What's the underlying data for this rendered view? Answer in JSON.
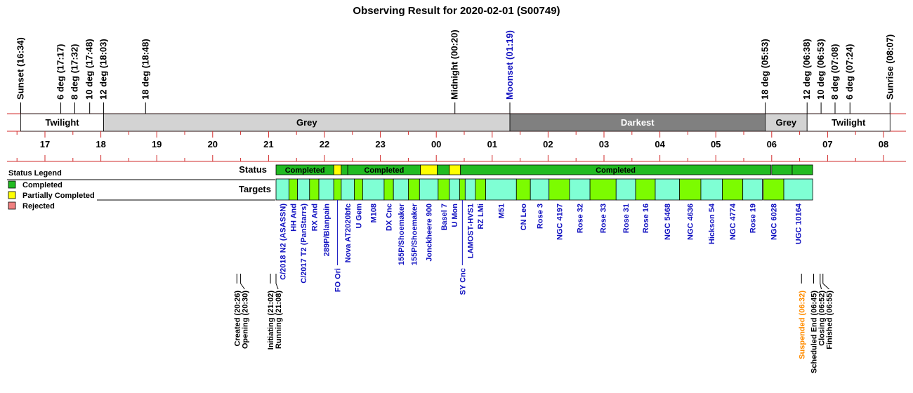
{
  "chart_data": {
    "type": "timeline",
    "title": "Observing Result for 2020-02-01 (S00749)",
    "time_axis": {
      "start": "16:30",
      "end": "08:30",
      "hour_labels": [
        "17",
        "18",
        "19",
        "20",
        "21",
        "22",
        "23",
        "00",
        "01",
        "02",
        "03",
        "04",
        "05",
        "06",
        "07",
        "08"
      ]
    },
    "sky_events": [
      {
        "label": "Sunset (16:34)",
        "time": "16:34",
        "color": "#000000"
      },
      {
        "label": "6 deg (17:17)",
        "time": "17:17",
        "color": "#000000"
      },
      {
        "label": "8 deg (17:32)",
        "time": "17:32",
        "color": "#000000"
      },
      {
        "label": "10 deg (17:48)",
        "time": "17:48",
        "color": "#000000"
      },
      {
        "label": "12 deg (18:03)",
        "time": "18:03",
        "color": "#000000"
      },
      {
        "label": "18 deg (18:48)",
        "time": "18:48",
        "color": "#000000"
      },
      {
        "label": "Midnight (00:20)",
        "time": "00:20",
        "color": "#000000"
      },
      {
        "label": "Moonset (01:19)",
        "time": "01:19",
        "color": "#1010c0"
      },
      {
        "label": "18 deg (05:53)",
        "time": "05:53",
        "color": "#000000"
      },
      {
        "label": "12 deg (06:38)",
        "time": "06:38",
        "color": "#000000"
      },
      {
        "label": "10 deg (06:53)",
        "time": "06:53",
        "color": "#000000"
      },
      {
        "label": "8 deg (07:08)",
        "time": "07:08",
        "color": "#000000"
      },
      {
        "label": "6 deg (07:24)",
        "time": "07:24",
        "color": "#000000"
      },
      {
        "label": "Sunrise (08:07)",
        "time": "08:07",
        "color": "#000000"
      }
    ],
    "sky_bands": [
      {
        "label": "Twilight",
        "start": "16:34",
        "end": "18:03",
        "color": "#ffffff",
        "text_color": "#000000"
      },
      {
        "label": "Grey",
        "start": "18:03",
        "end": "01:19",
        "color": "#d3d3d3",
        "text_color": "#000000"
      },
      {
        "label": "Darkest",
        "start": "01:19",
        "end": "05:53",
        "color": "#808080",
        "text_color": "#ffffff"
      },
      {
        "label": "Grey",
        "start": "05:53",
        "end": "06:38",
        "color": "#d3d3d3",
        "text_color": "#000000"
      },
      {
        "label": "Twilight",
        "start": "06:38",
        "end": "08:07",
        "color": "#ffffff",
        "text_color": "#000000"
      }
    ],
    "row_labels": {
      "status": "Status",
      "targets": "Targets"
    },
    "legend": {
      "title": "Status Legend",
      "position": "left",
      "items": [
        {
          "label": "Completed",
          "color": "#22bb22"
        },
        {
          "label": "Partially Completed",
          "color": "#ffff00"
        },
        {
          "label": "Rejected",
          "color": "#f08080"
        }
      ]
    },
    "status_segments": [
      {
        "label": "Completed",
        "status": "Completed",
        "start": "21:08",
        "end": "22:10"
      },
      {
        "label": "",
        "status": "Partially Completed",
        "start": "22:10",
        "end": "22:18"
      },
      {
        "label": "",
        "status": "Completed",
        "start": "22:18",
        "end": "22:25"
      },
      {
        "label": "Completed",
        "status": "Completed",
        "start": "22:25",
        "end": "23:43"
      },
      {
        "label": "",
        "status": "Partially Completed",
        "start": "23:43",
        "end": "00:01"
      },
      {
        "label": "",
        "status": "Completed",
        "start": "00:01",
        "end": "00:14"
      },
      {
        "label": "",
        "status": "Partially Completed",
        "start": "00:14",
        "end": "00:26"
      },
      {
        "label": "Completed",
        "status": "Completed",
        "start": "00:26",
        "end": "05:59"
      },
      {
        "label": "",
        "status": "Completed",
        "start": "06:00",
        "end": "06:22"
      },
      {
        "label": "",
        "status": "Completed",
        "start": "06:22",
        "end": "06:44"
      }
    ],
    "targets": [
      {
        "name": "C/2018 N2 (ASASSN)",
        "start": "21:08",
        "end": "21:22",
        "color": "#7fffd4"
      },
      {
        "name": "HH And",
        "start": "21:22",
        "end": "21:31",
        "color": "#7cfc00"
      },
      {
        "name": "C/2017 T2 (PanStarrs)",
        "start": "21:31",
        "end": "21:44",
        "color": "#7fffd4"
      },
      {
        "name": "RX And",
        "start": "21:44",
        "end": "21:54",
        "color": "#7cfc00"
      },
      {
        "name": "289P/Blanpain",
        "start": "21:54",
        "end": "22:10",
        "color": "#7fffd4"
      },
      {
        "name": "FO Ori",
        "start": "22:10",
        "end": "22:18",
        "color": "#7cfc00"
      },
      {
        "name": "Nova AT2020bfc",
        "start": "22:18",
        "end": "22:32",
        "color": "#7fffd4"
      },
      {
        "name": "U Gem",
        "start": "22:32",
        "end": "22:41",
        "color": "#7cfc00"
      },
      {
        "name": "M108",
        "start": "22:41",
        "end": "23:04",
        "color": "#7fffd4"
      },
      {
        "name": "DX Cnc",
        "start": "23:04",
        "end": "23:14",
        "color": "#7cfc00"
      },
      {
        "name": "155P/Shoemaker",
        "start": "23:14",
        "end": "23:30",
        "color": "#7fffd4"
      },
      {
        "name": "155P/Shoemaker",
        "start": "23:30",
        "end": "23:42",
        "color": "#7cfc00"
      },
      {
        "name": "Jonckheere 900",
        "start": "23:42",
        "end": "00:02",
        "color": "#7fffd4"
      },
      {
        "name": "Basel 7",
        "start": "00:02",
        "end": "00:14",
        "color": "#7cfc00"
      },
      {
        "name": "U Mon",
        "start": "00:14",
        "end": "00:25",
        "color": "#7fffd4"
      },
      {
        "name": "SY Cnc",
        "start": "00:25",
        "end": "00:31",
        "color": "#7cfc00"
      },
      {
        "name": "LAMOST-HVS1",
        "start": "00:31",
        "end": "00:42",
        "color": "#7fffd4"
      },
      {
        "name": "RZ LMi",
        "start": "00:42",
        "end": "00:53",
        "color": "#7cfc00"
      },
      {
        "name": "M51",
        "start": "00:53",
        "end": "01:26",
        "color": "#7fffd4"
      },
      {
        "name": "CN Leo",
        "start": "01:26",
        "end": "01:41",
        "color": "#7cfc00"
      },
      {
        "name": "Rose 3",
        "start": "01:41",
        "end": "02:01",
        "color": "#7fffd4"
      },
      {
        "name": "NGC 4197",
        "start": "02:01",
        "end": "02:23",
        "color": "#7cfc00"
      },
      {
        "name": "Rose 32",
        "start": "02:23",
        "end": "02:45",
        "color": "#7fffd4"
      },
      {
        "name": "Rose 33",
        "start": "02:45",
        "end": "03:13",
        "color": "#7cfc00"
      },
      {
        "name": "Rose 31",
        "start": "03:13",
        "end": "03:34",
        "color": "#7fffd4"
      },
      {
        "name": "Rose 16",
        "start": "03:34",
        "end": "03:55",
        "color": "#7cfc00"
      },
      {
        "name": "NGC 5468",
        "start": "03:55",
        "end": "04:21",
        "color": "#7fffd4"
      },
      {
        "name": "NGC 4636",
        "start": "04:21",
        "end": "04:44",
        "color": "#7cfc00"
      },
      {
        "name": "Hickson 54",
        "start": "04:44",
        "end": "05:07",
        "color": "#7fffd4"
      },
      {
        "name": "NGC 4774",
        "start": "05:07",
        "end": "05:29",
        "color": "#7cfc00"
      },
      {
        "name": "Rose 19",
        "start": "05:29",
        "end": "05:50",
        "color": "#7fffd4"
      },
      {
        "name": "NGC 6028",
        "start": "05:51",
        "end": "06:13",
        "color": "#7cfc00"
      },
      {
        "name": "UGC 10164",
        "start": "06:13",
        "end": "06:44",
        "color": "#7fffd4"
      }
    ],
    "target_name_color": "#1010c0",
    "dropped_labels": [
      "FO Ori",
      "SY Cnc"
    ],
    "run_events": [
      {
        "label": "Created (20:26)",
        "time": "20:26",
        "color": "#000000"
      },
      {
        "label": "Opening (20:30)",
        "time": "20:30",
        "color": "#000000"
      },
      {
        "label": "Initiating (21:02)",
        "time": "21:02",
        "color": "#000000"
      },
      {
        "label": "Running (21:08)",
        "time": "21:08",
        "color": "#000000"
      },
      {
        "label": "Suspended (06:32)",
        "time": "06:32",
        "color": "#ff8c00"
      },
      {
        "label": "Scheduled End (06:45)",
        "time": "06:45",
        "color": "#000000"
      },
      {
        "label": "Closing (06:52)",
        "time": "06:52",
        "color": "#000000"
      },
      {
        "label": "Finished (06:55)",
        "time": "06:55",
        "color": "#000000"
      }
    ]
  }
}
